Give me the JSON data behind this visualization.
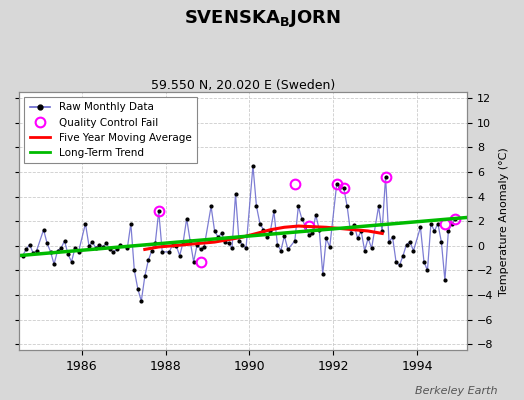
{
  "title": "SVENSKA$_\\mathrm{B}$JORN",
  "subtitle": "59.550 N, 20.020 E (Sweden)",
  "ylabel": "Temperature Anomaly (°C)",
  "background_color": "#d8d8d8",
  "plot_bg_color": "#ffffff",
  "xlim": [
    1984.5,
    1995.2
  ],
  "ylim": [
    -8.5,
    12.5
  ],
  "yticks": [
    -8,
    -6,
    -4,
    -2,
    0,
    2,
    4,
    6,
    8,
    10,
    12
  ],
  "xticks": [
    1986,
    1988,
    1990,
    1992,
    1994
  ],
  "raw_x": [
    1984.583,
    1984.667,
    1984.75,
    1984.833,
    1984.917,
    1985.083,
    1985.167,
    1985.25,
    1985.333,
    1985.417,
    1985.5,
    1985.583,
    1985.667,
    1985.75,
    1985.833,
    1985.917,
    1986.083,
    1986.167,
    1986.25,
    1986.333,
    1986.417,
    1986.5,
    1986.583,
    1986.667,
    1986.75,
    1986.833,
    1986.917,
    1987.083,
    1987.167,
    1987.25,
    1987.333,
    1987.417,
    1987.5,
    1987.583,
    1987.667,
    1987.75,
    1987.833,
    1987.917,
    1988.083,
    1988.167,
    1988.25,
    1988.333,
    1988.417,
    1988.5,
    1988.583,
    1988.667,
    1988.75,
    1988.833,
    1988.917,
    1989.083,
    1989.167,
    1989.25,
    1989.333,
    1989.417,
    1989.5,
    1989.583,
    1989.667,
    1989.75,
    1989.833,
    1989.917,
    1990.083,
    1990.167,
    1990.25,
    1990.333,
    1990.417,
    1990.5,
    1990.583,
    1990.667,
    1990.75,
    1990.833,
    1990.917,
    1991.083,
    1991.167,
    1991.25,
    1991.333,
    1991.417,
    1991.5,
    1991.583,
    1991.667,
    1991.75,
    1991.833,
    1991.917,
    1992.083,
    1992.167,
    1992.25,
    1992.333,
    1992.417,
    1992.5,
    1992.583,
    1992.667,
    1992.75,
    1992.833,
    1992.917,
    1993.083,
    1993.167,
    1993.25,
    1993.333,
    1993.417,
    1993.5,
    1993.583,
    1993.667,
    1993.75,
    1993.833,
    1993.917,
    1994.083,
    1994.167,
    1994.25,
    1994.333,
    1994.417,
    1994.5,
    1994.583,
    1994.667,
    1994.75,
    1994.833,
    1994.917
  ],
  "raw_y": [
    -0.8,
    -0.3,
    0.1,
    -0.6,
    -0.4,
    1.3,
    0.2,
    -0.5,
    -1.5,
    -0.4,
    -0.2,
    0.4,
    -0.7,
    -1.3,
    -0.2,
    -0.5,
    1.8,
    0.0,
    0.3,
    -0.2,
    0.1,
    -0.1,
    0.2,
    -0.3,
    -0.5,
    -0.3,
    0.1,
    -0.2,
    1.8,
    -2.0,
    -3.5,
    -4.5,
    -2.5,
    -1.2,
    -0.4,
    0.2,
    2.8,
    -0.5,
    -0.5,
    0.1,
    0.0,
    -0.8,
    0.3,
    2.2,
    0.4,
    -1.3,
    0.1,
    -0.3,
    -0.1,
    3.2,
    1.2,
    0.7,
    1.0,
    0.3,
    0.2,
    -0.2,
    4.2,
    0.4,
    0.1,
    -0.2,
    6.5,
    3.2,
    1.8,
    1.3,
    0.7,
    1.2,
    2.8,
    0.1,
    -0.4,
    0.8,
    -0.3,
    0.4,
    3.2,
    2.2,
    1.6,
    0.9,
    1.0,
    2.5,
    1.3,
    -2.3,
    0.6,
    -0.1,
    5.0,
    4.8,
    4.7,
    3.2,
    1.0,
    1.7,
    0.6,
    1.2,
    -0.4,
    0.6,
    -0.2,
    3.2,
    1.2,
    5.6,
    0.3,
    0.7,
    -1.3,
    -1.6,
    -0.8,
    0.1,
    0.3,
    -0.4,
    1.5,
    -1.3,
    -2.0,
    1.8,
    1.2,
    1.8,
    0.3,
    -2.8,
    1.2,
    1.8,
    2.2
  ],
  "qc_x": [
    1987.833,
    1988.833,
    1991.083,
    1991.417,
    1992.083,
    1992.25,
    1993.25,
    1994.667,
    1994.917
  ],
  "qc_y": [
    2.8,
    -1.3,
    5.0,
    1.6,
    5.0,
    4.7,
    5.6,
    1.8,
    2.2
  ],
  "moving_avg_x": [
    1987.5,
    1987.83,
    1988.17,
    1988.5,
    1988.83,
    1989.17,
    1989.5,
    1989.83,
    1990.17,
    1990.5,
    1990.83,
    1991.17,
    1991.5,
    1991.83,
    1992.17,
    1992.5,
    1992.83,
    1993.17
  ],
  "moving_avg_y": [
    -0.3,
    -0.1,
    0.0,
    0.1,
    0.2,
    0.3,
    0.5,
    0.7,
    1.0,
    1.3,
    1.5,
    1.6,
    1.55,
    1.5,
    1.4,
    1.3,
    1.2,
    1.0
  ],
  "trend_x": [
    1984.5,
    1995.2
  ],
  "trend_y": [
    -0.8,
    2.3
  ],
  "watermark": "Berkeley Earth",
  "legend_loc": "upper left"
}
